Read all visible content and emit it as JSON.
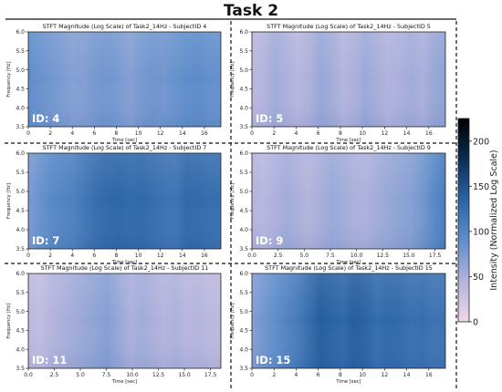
{
  "title": "Task 2",
  "chart_data": [
    {
      "type": "heatmap",
      "title": "STFT Magnitude (Log Scale) of Task2_14Hz - SubjectID 4",
      "xlabel": "Time [sec]",
      "ylabel": "Frequency [Hz]",
      "xlim": [
        0,
        17.5
      ],
      "ylim": [
        3.5,
        6.0
      ],
      "xticks": [
        "0",
        "2",
        "4",
        "6",
        "8",
        "10",
        "12",
        "14",
        "16"
      ],
      "yticks": [
        "3.5",
        "4.0",
        "4.5",
        "5.0",
        "5.5",
        "6.0"
      ],
      "id_label": "ID: 4",
      "profile": [
        90,
        85,
        80,
        75,
        70,
        72,
        78,
        80,
        76,
        70,
        78,
        82,
        80,
        85,
        90,
        92,
        88,
        86
      ]
    },
    {
      "type": "heatmap",
      "title": "STFT Magnitude (Log Scale) of Task2_14Hz - SubjectID 5",
      "xlabel": "Time [sec]",
      "ylabel": "Frequency [Hz]",
      "xlim": [
        0,
        17.5
      ],
      "ylim": [
        3.5,
        6.0
      ],
      "xticks": [
        "0",
        "2",
        "4",
        "6",
        "8",
        "10",
        "12",
        "14",
        "16"
      ],
      "yticks": [
        "3.5",
        "4.0",
        "4.5",
        "5.0",
        "5.5",
        "6.0"
      ],
      "id_label": "ID: 5",
      "profile": [
        40,
        45,
        55,
        50,
        42,
        48,
        60,
        55,
        45,
        50,
        58,
        52,
        46,
        50,
        55,
        50,
        60,
        65
      ]
    },
    {
      "type": "heatmap",
      "title": "STFT Magnitude (Log Scale) of Task2_14Hz - SubjectID 7",
      "xlabel": "Time [sec]",
      "ylabel": "Frequency [Hz]",
      "xlim": [
        0,
        17.5
      ],
      "ylim": [
        3.5,
        6.0
      ],
      "xticks": [
        "0",
        "2",
        "4",
        "6",
        "8",
        "10",
        "12",
        "14",
        "16"
      ],
      "yticks": [
        "3.5",
        "4.0",
        "4.5",
        "5.0",
        "5.5",
        "6.0"
      ],
      "id_label": "ID: 7",
      "profile": [
        75,
        85,
        95,
        100,
        105,
        115,
        125,
        130,
        132,
        128,
        130,
        125,
        120,
        118,
        130,
        128,
        125,
        122
      ]
    },
    {
      "type": "heatmap",
      "title": "STFT Magnitude (Log Scale) of Task2_14Hz - SubjectID 9",
      "xlabel": "Time [sec]",
      "ylabel": "Frequency [Hz]",
      "xlim": [
        0,
        18.5
      ],
      "ylim": [
        3.5,
        6.0
      ],
      "xticks": [
        "0.0",
        "2.5",
        "5.0",
        "7.5",
        "10.0",
        "12.5",
        "15.0",
        "17.5"
      ],
      "yticks": [
        "3.5",
        "4.0",
        "4.5",
        "5.0",
        "5.5",
        "6.0"
      ],
      "id_label": "ID: 9",
      "profile": [
        45,
        42,
        48,
        55,
        50,
        45,
        52,
        58,
        55,
        50,
        48,
        55,
        60,
        65,
        70,
        80,
        95,
        110
      ]
    },
    {
      "type": "heatmap",
      "title": "STFT Magnitude (Log Scale) of Task2_14Hz - SubjectID 11",
      "xlabel": "Time [sec]",
      "ylabel": "Frequency [Hz]",
      "xlim": [
        0,
        18.5
      ],
      "ylim": [
        3.5,
        6.0
      ],
      "xticks": [
        "0.0",
        "2.5",
        "5.0",
        "7.5",
        "10.0",
        "12.5",
        "15.0",
        "17.5"
      ],
      "yticks": [
        "3.5",
        "4.0",
        "4.5",
        "5.0",
        "5.5",
        "6.0"
      ],
      "id_label": "ID: 11",
      "profile": [
        40,
        35,
        45,
        50,
        55,
        60,
        65,
        70,
        60,
        50,
        55,
        50,
        45,
        48,
        42,
        45,
        40,
        38
      ]
    },
    {
      "type": "heatmap",
      "title": "STFT Magnitude (Log Scale) of Task2_14Hz - SubjectID 15",
      "xlabel": "Time [sec]",
      "ylabel": "Frequency [Hz]",
      "xlim": [
        0,
        17.5
      ],
      "ylim": [
        3.5,
        6.0
      ],
      "xticks": [
        "0",
        "2",
        "4",
        "6",
        "8",
        "10",
        "12",
        "14",
        "16"
      ],
      "yticks": [
        "3.5",
        "4.0",
        "4.5",
        "5.0",
        "5.5",
        "6.0"
      ],
      "id_label": "ID: 15",
      "profile": [
        70,
        80,
        90,
        100,
        110,
        125,
        140,
        135,
        130,
        140,
        135,
        125,
        130,
        128,
        122,
        125,
        118,
        120
      ]
    }
  ],
  "colorbar": {
    "label": "Intensity (Normalized Log Scale)",
    "range": [
      0,
      225
    ],
    "ticks": [
      "0",
      "50",
      "100",
      "150",
      "200"
    ],
    "colors": [
      "#f0d6ea",
      "#b4b4dd",
      "#5f8ecb",
      "#2a63a6",
      "#0b2d55",
      "#000000"
    ]
  }
}
